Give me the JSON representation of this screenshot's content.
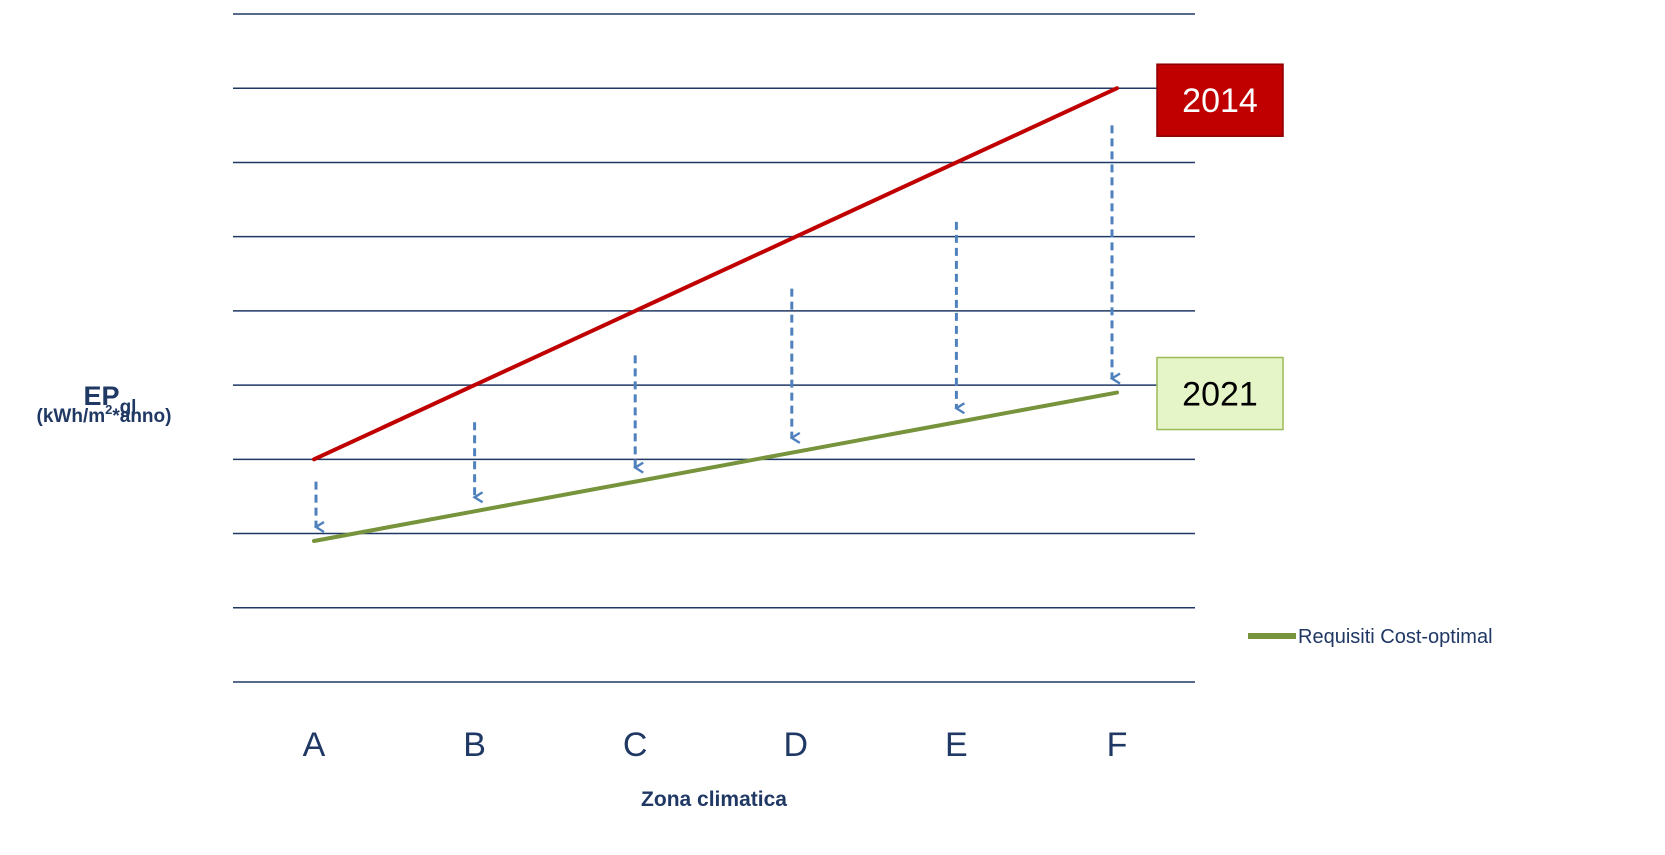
{
  "chart_data": {
    "type": "line",
    "title": "",
    "xlabel": "Zona climatica",
    "ylabel_main": "EP",
    "ylabel_sub": "gl",
    "ylabel_unit_prefix": "(kWh/m",
    "ylabel_unit_sup": "2",
    "ylabel_unit_suffix": "*anno)",
    "categories": [
      "A",
      "B",
      "C",
      "D",
      "E",
      "F"
    ],
    "ylim": [
      0,
      9
    ],
    "gridlines": 10,
    "grid": true,
    "series": [
      {
        "name": "",
        "values": [
          3.0,
          4.0,
          5.0,
          6.0,
          7.0,
          8.0
        ],
        "color": "#c00000"
      },
      {
        "name": "Requisiti Cost-optimal",
        "values": [
          1.9,
          2.3,
          2.7,
          3.1,
          3.5,
          3.9
        ],
        "color": "#77933c"
      }
    ],
    "reduction_arrows": {
      "color": "#4f81bd",
      "start_values": [
        2.7,
        3.5,
        4.4,
        5.3,
        6.2,
        7.5
      ]
    },
    "callouts": [
      {
        "text": "2014",
        "series": 0,
        "bg": "#c00000",
        "fg": "#ffffff",
        "border": "#8b0000"
      },
      {
        "text": "2021",
        "series": 1,
        "bg": "#e6f5c8",
        "fg": "#000000",
        "border": "#9bbb59"
      }
    ],
    "legend_position": "right",
    "colors": {
      "grid": "#1f3864",
      "text": "#1f3864"
    }
  }
}
